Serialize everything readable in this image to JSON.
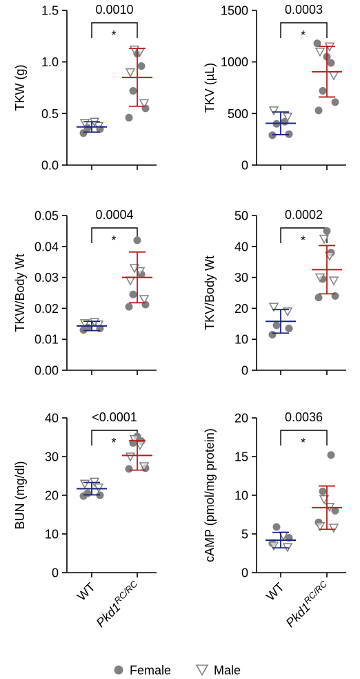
{
  "legend": {
    "female_label": "Female",
    "male_label": "Male",
    "female_color": "#808080",
    "male_color": "#808080"
  },
  "categories": [
    {
      "main": "WT",
      "sup": ""
    },
    {
      "main": "Pkd1",
      "sup": "RC/RC"
    }
  ],
  "group_colors": [
    "#1a237e",
    "#b71c1c"
  ],
  "chart_data": [
    {
      "type": "scatter",
      "ylabel": "TKW (g)",
      "ylim": [
        0,
        1.5
      ],
      "yticks": [
        "0.0",
        "0.5",
        "1.0",
        "1.5"
      ],
      "tick_values": [
        0,
        0.5,
        1.0,
        1.5
      ],
      "p_value": "0.0010",
      "significance": "*",
      "groups": [
        {
          "name": "WT",
          "mean": 0.37,
          "sd": 0.05,
          "female": [
            0.31,
            0.35,
            0.36
          ],
          "male": [
            0.38,
            0.41,
            0.42
          ]
        },
        {
          "name": "Pkd1 RC/RC",
          "mean": 0.85,
          "sd": 0.28,
          "female": [
            0.46,
            0.55,
            0.72,
            0.96,
            1.08
          ],
          "male": [
            0.6,
            0.9,
            1.1,
            1.12
          ]
        }
      ]
    },
    {
      "type": "scatter",
      "ylabel": "TKV (µL)",
      "ylim": [
        0,
        1500
      ],
      "yticks": [
        "0",
        "500",
        "1000",
        "1500"
      ],
      "tick_values": [
        0,
        500,
        1000,
        1500
      ],
      "p_value": "0.0003",
      "significance": "*",
      "groups": [
        {
          "name": "WT",
          "mean": 405,
          "sd": 110,
          "female": [
            290,
            300,
            400,
            420
          ],
          "male": [
            470,
            530
          ]
        },
        {
          "name": "Pkd1 RC/RC",
          "mean": 905,
          "sd": 245,
          "female": [
            530,
            610,
            720,
            990,
            1050,
            1180
          ],
          "male": [
            870,
            1100,
            1150
          ]
        }
      ]
    },
    {
      "type": "scatter",
      "ylabel": "TKW/Body Wt",
      "ylim": [
        0,
        0.05
      ],
      "yticks": [
        "0.00",
        "0.01",
        "0.02",
        "0.03",
        "0.04",
        "0.05"
      ],
      "tick_values": [
        0,
        0.01,
        0.02,
        0.03,
        0.04,
        0.05
      ],
      "p_value": "0.0004",
      "significance": "*",
      "groups": [
        {
          "name": "WT",
          "mean": 0.0143,
          "sd": 0.0015,
          "female": [
            0.013,
            0.0135,
            0.0138
          ],
          "male": [
            0.0148,
            0.0152,
            0.0156
          ]
        },
        {
          "name": "Pkd1 RC/RC",
          "mean": 0.03,
          "sd": 0.0082,
          "female": [
            0.0205,
            0.0212,
            0.0245,
            0.031,
            0.042
          ],
          "male": [
            0.023,
            0.029,
            0.032,
            0.033
          ]
        }
      ]
    },
    {
      "type": "scatter",
      "ylabel": "TKV/Body Wt",
      "ylim": [
        0,
        50
      ],
      "yticks": [
        "0",
        "10",
        "20",
        "30",
        "40",
        "50"
      ],
      "tick_values": [
        0,
        10,
        20,
        30,
        40,
        50
      ],
      "p_value": "0.0002",
      "significance": "*",
      "groups": [
        {
          "name": "WT",
          "mean": 15.8,
          "sd": 3.8,
          "female": [
            11.5,
            13.5,
            14.5
          ],
          "male": [
            19.0,
            20.5
          ]
        },
        {
          "name": "Pkd1 RC/RC",
          "mean": 32.5,
          "sd": 7.8,
          "female": [
            23.5,
            24.0,
            29.5,
            38.0,
            45.0
          ],
          "male": [
            29.0,
            30.0,
            37.0,
            42.5
          ]
        }
      ]
    },
    {
      "type": "scatter",
      "ylabel": "BUN (mg/dl)",
      "ylim": [
        0,
        40
      ],
      "yticks": [
        "0",
        "10",
        "20",
        "30",
        "40"
      ],
      "tick_values": [
        0,
        10,
        20,
        30,
        40
      ],
      "p_value": "<0.0001",
      "significance": "*",
      "groups": [
        {
          "name": "WT",
          "mean": 21.7,
          "sd": 1.6,
          "female": [
            19.8,
            20.0,
            20.5
          ],
          "male": [
            22.0,
            23.0,
            23.5
          ]
        },
        {
          "name": "Pkd1 RC/RC",
          "mean": 30.3,
          "sd": 3.8,
          "female": [
            26.8,
            27.0,
            33.5,
            34.0,
            35.2
          ],
          "male": [
            27.5,
            30.0,
            33.0,
            34.5
          ]
        }
      ]
    },
    {
      "type": "scatter",
      "ylabel": "cAMP (pmol/mg protein)",
      "ylim": [
        0,
        20
      ],
      "yticks": [
        "0",
        "5",
        "10",
        "15",
        "20"
      ],
      "tick_values": [
        0,
        5,
        10,
        15,
        20
      ],
      "p_value": "0.0036",
      "significance": "*",
      "groups": [
        {
          "name": "WT",
          "mean": 4.2,
          "sd": 1.0,
          "female": [
            3.8,
            4.5,
            5.9
          ],
          "male": [
            3.3,
            3.5,
            4.8
          ]
        },
        {
          "name": "Pkd1 RC/RC",
          "mean": 8.4,
          "sd": 2.8,
          "female": [
            6.5,
            8.0,
            10.5,
            15.2
          ],
          "male": [
            5.8,
            6.0,
            8.5,
            9.5
          ]
        }
      ]
    }
  ]
}
